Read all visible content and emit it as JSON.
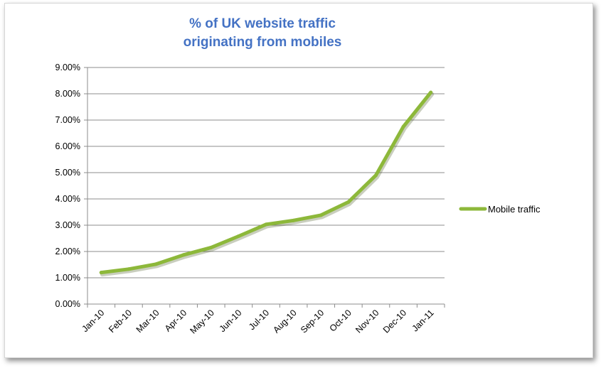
{
  "chart_data": {
    "type": "line",
    "title_lines": [
      "% of UK website traffic",
      "originating from mobiles"
    ],
    "categories": [
      "Jan-10",
      "Feb-10",
      "Mar-10",
      "Apr-10",
      "May-10",
      "Jun-10",
      "Jul-10",
      "Aug-10",
      "Sep-10",
      "Oct-10",
      "Nov-10",
      "Dec-10",
      "Jan-11"
    ],
    "y_ticks": [
      "0.00%",
      "1.00%",
      "2.00%",
      "3.00%",
      "4.00%",
      "5.00%",
      "6.00%",
      "7.00%",
      "8.00%",
      "9.00%"
    ],
    "ylim": [
      0,
      9
    ],
    "series": [
      {
        "name": "Mobile traffic",
        "color": "#8db83a",
        "values": [
          1.2,
          1.33,
          1.52,
          1.87,
          2.15,
          2.58,
          3.03,
          3.18,
          3.38,
          3.88,
          4.9,
          6.75,
          8.05
        ]
      }
    ],
    "xlabel": "",
    "ylabel": "",
    "grid": true,
    "legend_position": "right",
    "title_color": "#4472c4"
  }
}
